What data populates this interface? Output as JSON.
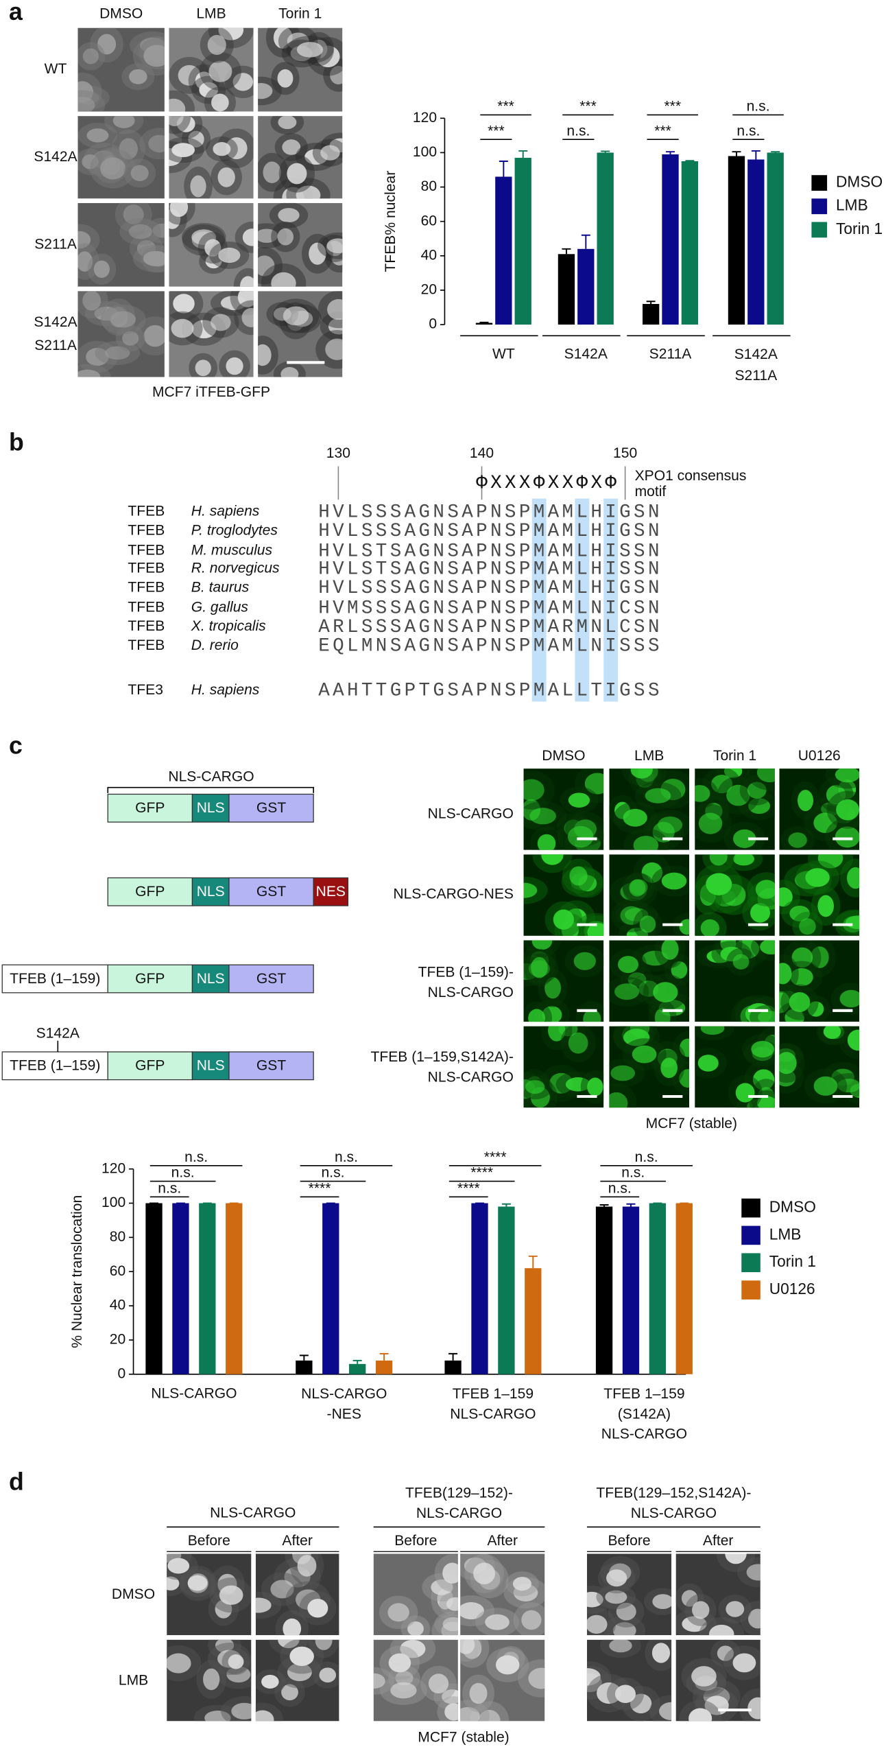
{
  "panel_labels": [
    "a",
    "b",
    "c",
    "d"
  ],
  "panel_a": {
    "columns": [
      "DMSO",
      "LMB",
      "Torin 1"
    ],
    "rows": [
      "WT",
      "S142A",
      "S211A",
      "S142A\nS211A"
    ],
    "caption": "MCF7 iTFEB-GFP"
  },
  "panel_b": {
    "ruler": [
      130,
      140,
      150
    ],
    "motif": "ΦXXXΦXXΦXΦ",
    "motif_label": "XPO1 consensus\nmotif",
    "rows": [
      {
        "protein": "TFEB",
        "species": "H. sapiens",
        "sequence": "HVLSSSAGNSAPNSPMAMLHIGSN"
      },
      {
        "protein": "TFEB",
        "species": "P. troglodytes",
        "sequence": "HVLSSSAGNSAPNSPMAMLHIGSN"
      },
      {
        "protein": "TFEB",
        "species": "M. musculus",
        "sequence": "HVLSTSAGNSAPNSPMAMLHISSN"
      },
      {
        "protein": "TFEB",
        "species": "R. norvegicus",
        "sequence": "HVLSTSAGNSAPNSPMAMLHISSN"
      },
      {
        "protein": "TFEB",
        "species": "B. taurus",
        "sequence": "HVLSSSAGNSAPNSPMAMLHIGSN"
      },
      {
        "protein": "TFEB",
        "species": "G. gallus",
        "sequence": "HVMSSSAGNSAPNSPMAMLNICSN"
      },
      {
        "protein": "TFEB",
        "species": "X. tropicalis",
        "sequence": "ARLSSSAGNSAPNSPMARMNLCSN"
      },
      {
        "protein": "TFEB",
        "species": "D. rerio",
        "sequence": "EQLMNSAGNSAPNSPMAMLNISSS"
      },
      {
        "protein": "TFE3",
        "species": "H. sapiens",
        "sequence": "AAHTTGPTGSAPNSPMALLTIGSS"
      }
    ]
  },
  "panel_c": {
    "construct_title": "NLS-CARGO",
    "constructs": [
      {
        "boxes": [
          {
            "label": "GFP",
            "color": "#c9f5dd"
          },
          {
            "label": "NLS",
            "color": "#16897a"
          },
          {
            "label": "GST",
            "color": "#b4b4f4"
          }
        ]
      },
      {
        "boxes": [
          {
            "label": "GFP",
            "color": "#c9f5dd"
          },
          {
            "label": "NLS",
            "color": "#16897a"
          },
          {
            "label": "GST",
            "color": "#b4b4f4"
          },
          {
            "label": "NES",
            "color": "#9a1010"
          }
        ]
      },
      {
        "boxes": [
          {
            "label": "TFEB (1–159)",
            "color": "#ffffff"
          },
          {
            "label": "GFP",
            "color": "#c9f5dd"
          },
          {
            "label": "NLS",
            "color": "#16897a"
          },
          {
            "label": "GST",
            "color": "#b4b4f4"
          }
        ]
      },
      {
        "mutation": "S142A",
        "boxes": [
          {
            "label": "TFEB (1–159)",
            "color": "#ffffff"
          },
          {
            "label": "GFP",
            "color": "#c9f5dd"
          },
          {
            "label": "NLS",
            "color": "#16897a"
          },
          {
            "label": "GST",
            "color": "#b4b4f4"
          }
        ]
      }
    ],
    "columns": [
      "DMSO",
      "LMB",
      "Torin 1",
      "U0126"
    ],
    "rows": [
      "NLS-CARGO",
      "NLS-CARGO-NES",
      "TFEB (1–159)-\nNLS-CARGO",
      "TFEB (1–159,S142A)-\nNLS-CARGO"
    ],
    "caption": "MCF7 (stable)"
  },
  "panel_d": {
    "groups": [
      "NLS-CARGO",
      "TFEB(129–152)-\nNLS-CARGO",
      "TFEB(129–152,S142A)-\nNLS-CARGO"
    ],
    "subcolumns": [
      "Before",
      "After"
    ],
    "rows": [
      "DMSO",
      "LMB"
    ],
    "caption": "MCF7 (stable)"
  },
  "chart_data": [
    {
      "type": "bar",
      "ylabel": "TFEB% nuclear",
      "categories": [
        "WT",
        "S142A",
        "S211A",
        "S142A\nS211A"
      ],
      "series": [
        {
          "name": "DMSO",
          "color": "#000000",
          "values": [
            1,
            41,
            12,
            98
          ],
          "errors": [
            0.3,
            3,
            1.5,
            2.5
          ]
        },
        {
          "name": "LMB",
          "color": "#0a0a8a",
          "values": [
            86,
            44,
            99,
            96
          ],
          "errors": [
            9,
            8,
            1.5,
            5
          ]
        },
        {
          "name": "Torin 1",
          "color": "#0b7a55",
          "values": [
            97,
            100,
            95,
            100
          ],
          "errors": [
            4,
            0.8,
            0.3,
            0.5
          ]
        }
      ],
      "significance": [
        [
          "***",
          "***"
        ],
        [
          "***",
          "n.s."
        ],
        [
          "***",
          "***"
        ],
        [
          "n.s.",
          "n.s."
        ]
      ],
      "ylim": [
        0,
        120
      ],
      "yticks": [
        0,
        20,
        40,
        60,
        80,
        100,
        120
      ]
    },
    {
      "type": "bar",
      "ylabel": "% Nuclear translocation",
      "categories": [
        "NLS-CARGO",
        "NLS-CARGO\n-NES",
        "TFEB 1–159\nNLS-CARGO",
        "TFEB 1–159\n(S142A)\nNLS-CARGO"
      ],
      "series": [
        {
          "name": "DMSO",
          "color": "#000000",
          "values": [
            100,
            8,
            8,
            98
          ],
          "errors": [
            0,
            3,
            4,
            1
          ]
        },
        {
          "name": "LMB",
          "color": "#0a0a8a",
          "values": [
            100,
            100,
            100,
            98
          ],
          "errors": [
            0,
            0,
            0,
            1.5
          ]
        },
        {
          "name": "Torin 1",
          "color": "#0b7a55",
          "values": [
            100,
            6,
            98,
            100
          ],
          "errors": [
            0,
            2,
            1.5,
            0
          ]
        },
        {
          "name": "U0126",
          "color": "#d06a10",
          "values": [
            100,
            8,
            62,
            100
          ],
          "errors": [
            0,
            4,
            7,
            0
          ]
        }
      ],
      "significance": [
        [
          "n.s.",
          "n.s.",
          "n.s."
        ],
        [
          "n.s.",
          "n.s.",
          "****"
        ],
        [
          "****",
          "****",
          "****"
        ],
        [
          "n.s.",
          "n.s.",
          "n.s."
        ]
      ],
      "ylim": [
        0,
        120
      ],
      "yticks": [
        0,
        20,
        40,
        60,
        80,
        100,
        120
      ]
    }
  ]
}
